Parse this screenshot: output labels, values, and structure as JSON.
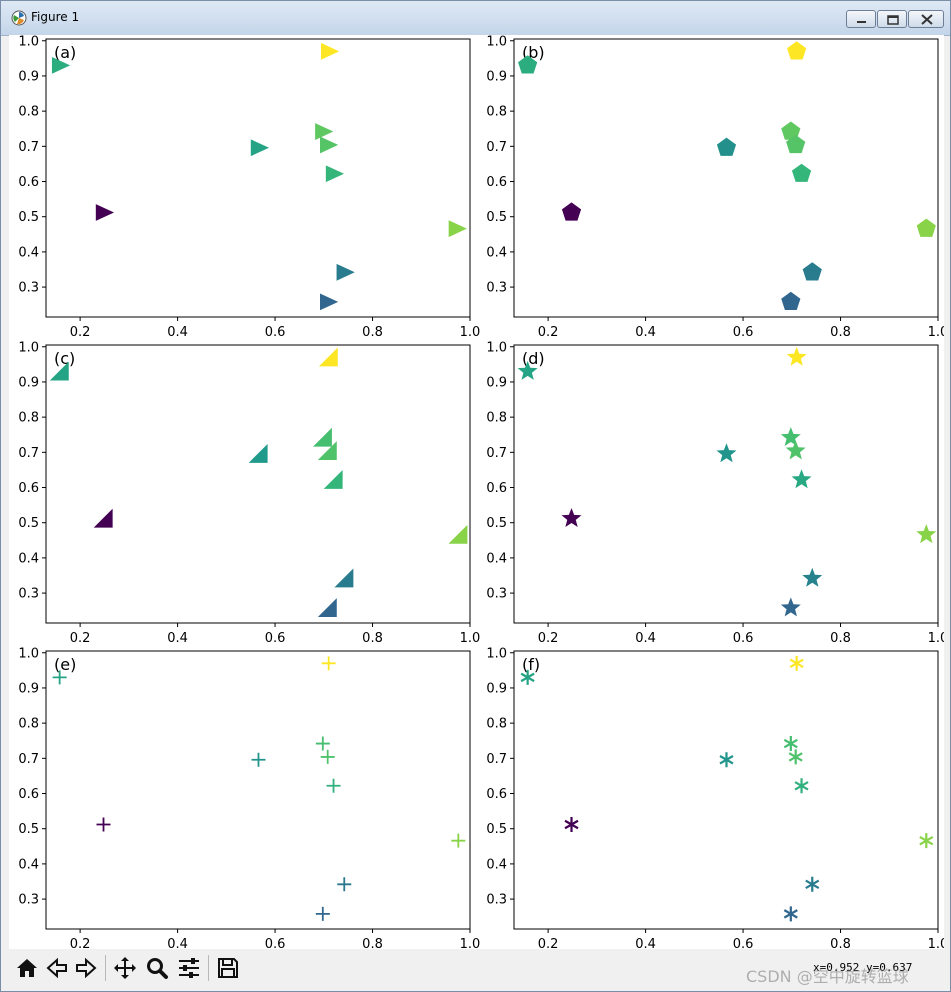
{
  "window": {
    "title": "Figure 1",
    "controls": [
      "minimize",
      "maximize",
      "close"
    ]
  },
  "toolbar": {
    "buttons": [
      {
        "name": "home-button",
        "icon": "home-icon"
      },
      {
        "name": "back-button",
        "icon": "arrow-left-icon"
      },
      {
        "name": "forward-button",
        "icon": "arrow-right-icon"
      },
      {
        "name": "pan-button",
        "icon": "move-icon"
      },
      {
        "name": "zoom-button",
        "icon": "magnifier-icon"
      },
      {
        "name": "configure-subplots-button",
        "icon": "sliders-icon"
      },
      {
        "name": "save-button",
        "icon": "floppy-disk-icon"
      }
    ],
    "coordinates": "x=0.952  y=0.637"
  },
  "watermark": "CSDN @空中旋转篮球",
  "colors": {
    "colormap": "viridis",
    "tick_text": "#000000",
    "axes_edge": "#000000"
  },
  "chart_data": [
    {
      "type": "scatter",
      "panel_label": "(a)",
      "marker": "triangle-right",
      "x": [
        0.158,
        0.248,
        0.566,
        0.698,
        0.708,
        0.71,
        0.72,
        0.742,
        0.708,
        0.972
      ],
      "y": [
        0.93,
        0.512,
        0.696,
        0.742,
        0.704,
        0.97,
        0.622,
        0.342,
        0.258,
        0.466
      ],
      "color_values": [
        0.62,
        0.0,
        0.58,
        0.75,
        0.73,
        1.0,
        0.66,
        0.42,
        0.33,
        0.82
      ],
      "xticks": [
        "0.2",
        "0.4",
        "0.6",
        "0.8",
        "1.0"
      ],
      "yticks": [
        "0.3",
        "0.4",
        "0.5",
        "0.6",
        "0.7",
        "0.8",
        "0.9",
        "1.0"
      ],
      "xlim": [
        0.13,
        1.0
      ],
      "ylim": [
        0.215,
        1.005
      ]
    },
    {
      "type": "scatter",
      "panel_label": "(b)",
      "marker": "pentagon",
      "x": [
        0.158,
        0.248,
        0.566,
        0.698,
        0.708,
        0.71,
        0.72,
        0.742,
        0.698,
        0.976
      ],
      "y": [
        0.93,
        0.512,
        0.696,
        0.742,
        0.704,
        0.97,
        0.622,
        0.342,
        0.258,
        0.466
      ],
      "color_values": [
        0.62,
        0.0,
        0.5,
        0.75,
        0.73,
        1.0,
        0.66,
        0.42,
        0.33,
        0.82
      ],
      "xticks": [
        "0.2",
        "0.4",
        "0.6",
        "0.8",
        "1.0"
      ],
      "yticks": [
        "0.3",
        "0.4",
        "0.5",
        "0.6",
        "0.7",
        "0.8",
        "0.9",
        "1.0"
      ],
      "xlim": [
        0.13,
        1.0
      ],
      "ylim": [
        0.215,
        1.005
      ]
    },
    {
      "type": "scatter",
      "panel_label": "(c)",
      "marker": "triangle-lower-right",
      "x": [
        0.158,
        0.248,
        0.566,
        0.698,
        0.708,
        0.71,
        0.72,
        0.742,
        0.708,
        0.976
      ],
      "y": [
        0.93,
        0.512,
        0.696,
        0.742,
        0.704,
        0.97,
        0.622,
        0.342,
        0.258,
        0.466
      ],
      "color_values": [
        0.58,
        0.0,
        0.54,
        0.7,
        0.72,
        1.0,
        0.66,
        0.42,
        0.33,
        0.82
      ],
      "xticks": [
        "0.2",
        "0.4",
        "0.6",
        "0.8",
        "1.0"
      ],
      "yticks": [
        "0.3",
        "0.4",
        "0.5",
        "0.6",
        "0.7",
        "0.8",
        "0.9",
        "1.0"
      ],
      "xlim": [
        0.13,
        1.0
      ],
      "ylim": [
        0.215,
        1.005
      ]
    },
    {
      "type": "scatter",
      "panel_label": "(d)",
      "marker": "star",
      "x": [
        0.158,
        0.248,
        0.566,
        0.698,
        0.708,
        0.71,
        0.72,
        0.742,
        0.698,
        0.976
      ],
      "y": [
        0.93,
        0.512,
        0.696,
        0.742,
        0.704,
        0.97,
        0.622,
        0.342,
        0.258,
        0.466
      ],
      "color_values": [
        0.58,
        0.0,
        0.52,
        0.7,
        0.72,
        1.0,
        0.6,
        0.45,
        0.33,
        0.82
      ],
      "xticks": [
        "0.2",
        "0.4",
        "0.6",
        "0.8",
        "1.0"
      ],
      "yticks": [
        "0.3",
        "0.4",
        "0.5",
        "0.6",
        "0.7",
        "0.8",
        "0.9",
        "1.0"
      ],
      "xlim": [
        0.13,
        1.0
      ],
      "ylim": [
        0.215,
        1.005
      ]
    },
    {
      "type": "scatter",
      "panel_label": "(e)",
      "marker": "plus",
      "x": [
        0.158,
        0.248,
        0.566,
        0.698,
        0.708,
        0.71,
        0.72,
        0.742,
        0.698,
        0.976
      ],
      "y": [
        0.93,
        0.512,
        0.696,
        0.742,
        0.704,
        0.97,
        0.622,
        0.342,
        0.258,
        0.466
      ],
      "color_values": [
        0.58,
        0.0,
        0.52,
        0.7,
        0.72,
        1.0,
        0.64,
        0.4,
        0.33,
        0.82
      ],
      "xticks": [
        "0.2",
        "0.4",
        "0.6",
        "0.8",
        "1.0"
      ],
      "yticks": [
        "0.3",
        "0.4",
        "0.5",
        "0.6",
        "0.7",
        "0.8",
        "0.9",
        "1.0"
      ],
      "xlim": [
        0.13,
        1.0
      ],
      "ylim": [
        0.215,
        1.005
      ]
    },
    {
      "type": "scatter",
      "panel_label": "(f)",
      "marker": "asterisk",
      "x": [
        0.158,
        0.248,
        0.566,
        0.698,
        0.708,
        0.71,
        0.72,
        0.742,
        0.698,
        0.976
      ],
      "y": [
        0.93,
        0.512,
        0.696,
        0.742,
        0.704,
        0.97,
        0.622,
        0.342,
        0.258,
        0.466
      ],
      "color_values": [
        0.58,
        0.0,
        0.52,
        0.7,
        0.72,
        1.0,
        0.64,
        0.42,
        0.33,
        0.82
      ],
      "xticks": [
        "0.2",
        "0.4",
        "0.6",
        "0.8",
        "1.0"
      ],
      "yticks": [
        "0.3",
        "0.4",
        "0.5",
        "0.6",
        "0.7",
        "0.8",
        "0.9",
        "1.0"
      ],
      "xlim": [
        0.13,
        1.0
      ],
      "ylim": [
        0.215,
        1.005
      ]
    }
  ]
}
